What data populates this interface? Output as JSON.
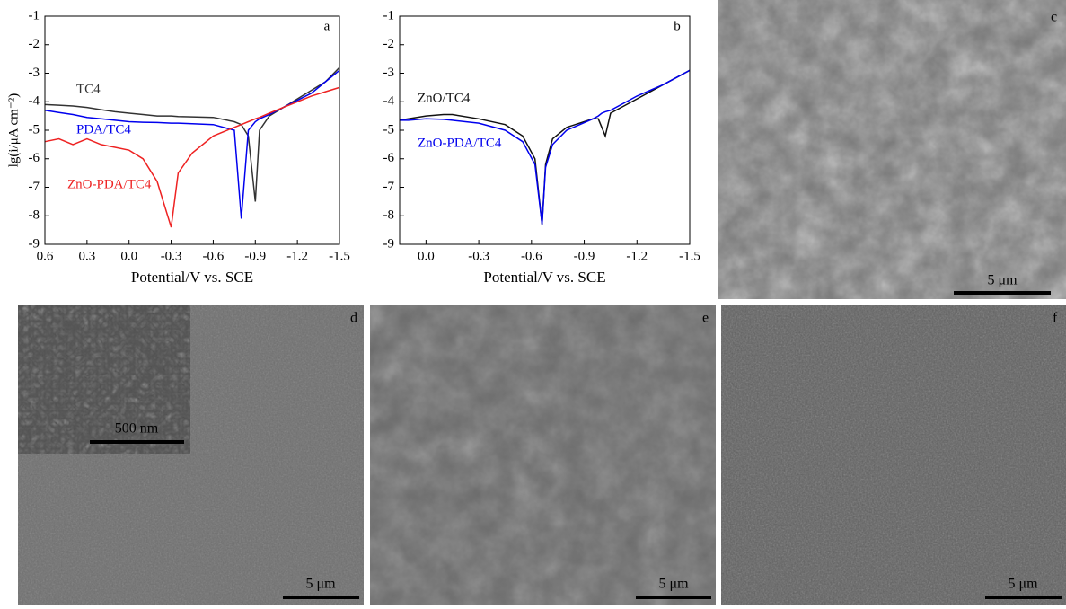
{
  "chart_data": [
    {
      "type": "line",
      "panel_label": "a",
      "x_label": "Potential/V vs. SCE",
      "y_label": "lg(i/μA cm⁻²)",
      "x": [
        0.6,
        0.5,
        0.4,
        0.3,
        0.2,
        0.1,
        0.0,
        -0.1,
        -0.2,
        -0.3,
        -0.35,
        -0.45,
        -0.6,
        -0.75,
        -0.8,
        -0.85,
        -0.9,
        -0.93,
        -1.0,
        -1.1,
        -1.2,
        -1.3,
        -1.4,
        -1.5
      ],
      "series": [
        {
          "name": "TC4",
          "color": "#333333",
          "values": [
            -4.1,
            -4.12,
            -4.15,
            -4.2,
            -4.28,
            -4.35,
            -4.4,
            -4.45,
            -4.5,
            -4.5,
            -4.52,
            -4.53,
            -4.55,
            -4.7,
            -4.8,
            -5.2,
            -7.5,
            -5.0,
            -4.5,
            -4.2,
            -3.9,
            -3.6,
            -3.3,
            -2.8
          ]
        },
        {
          "name": "PDA/TC4",
          "color": "#0000ee",
          "values": [
            -4.3,
            -4.38,
            -4.45,
            -4.55,
            -4.6,
            -4.65,
            -4.7,
            -4.72,
            -4.73,
            -4.75,
            -4.75,
            -4.77,
            -4.8,
            -5.0,
            -8.1,
            -5.0,
            -4.7,
            -4.6,
            -4.45,
            -4.2,
            -3.95,
            -3.7,
            -3.3,
            -2.9
          ]
        },
        {
          "name": "ZnO-PDA/TC4",
          "color": "#ee2222",
          "values": [
            -5.4,
            -5.3,
            -5.5,
            -5.3,
            -5.5,
            -5.6,
            -5.7,
            -6.0,
            -6.8,
            -8.4,
            -6.5,
            -5.8,
            -5.2,
            -4.9,
            -4.8,
            -4.7,
            -4.6,
            -4.55,
            -4.4,
            -4.2,
            -4.0,
            -3.8,
            -3.65,
            -3.5
          ]
        }
      ],
      "xlim": [
        0.6,
        -1.5
      ],
      "xticks": [
        0.6,
        0.3,
        {
          "value": 0,
          "label": "0.0"
        },
        -0.3,
        -0.6,
        -0.9,
        -1.2,
        -1.5
      ],
      "ylim": [
        -9,
        -1
      ],
      "yticks": [
        -9,
        -8,
        -7,
        -6,
        -5,
        -4,
        -3,
        -2,
        -1
      ]
    },
    {
      "type": "line",
      "panel_label": "b",
      "x_label": "Potential/V vs. SCE",
      "x": [
        0.15,
        0.1,
        0.0,
        -0.1,
        -0.15,
        -0.3,
        -0.45,
        -0.55,
        -0.62,
        -0.66,
        -0.68,
        -0.72,
        -0.8,
        -0.95,
        -0.98,
        -1.0,
        -1.02,
        -1.05,
        -1.2,
        -1.35,
        -1.5
      ],
      "series": [
        {
          "name": "ZnO/TC4",
          "color": "#111111",
          "values": [
            -4.65,
            -4.6,
            -4.5,
            -4.45,
            -4.45,
            -4.6,
            -4.8,
            -5.2,
            -6.0,
            -8.3,
            -6.2,
            -5.3,
            -4.9,
            -4.6,
            -4.6,
            -4.9,
            -5.2,
            -4.4,
            -3.9,
            -3.4,
            -2.9
          ]
        },
        {
          "name": "ZnO-PDA/TC4",
          "color": "#0000ee",
          "values": [
            -4.65,
            -4.65,
            -4.6,
            -4.62,
            -4.65,
            -4.75,
            -5.0,
            -5.4,
            -6.2,
            -8.3,
            -6.3,
            -5.5,
            -5.0,
            -4.6,
            -4.5,
            -4.4,
            -4.35,
            -4.3,
            -3.8,
            -3.4,
            -2.9
          ]
        }
      ],
      "xlim": [
        0.15,
        -1.5
      ],
      "xticks": [
        {
          "value": 0,
          "label": "0.0"
        },
        -0.3,
        -0.6,
        -0.9,
        -1.2,
        -1.5
      ],
      "ylim": [
        -9,
        -1
      ],
      "yticks": [
        -9,
        -8,
        -7,
        -6,
        -5,
        -4,
        -3,
        -2,
        -1
      ]
    }
  ],
  "images": [
    {
      "label": "c",
      "scale_bar": "5 μm"
    },
    {
      "label": "d",
      "scale_bar": "5 μm",
      "inset_scale_bar": "500 nm"
    },
    {
      "label": "e",
      "scale_bar": "5 μm"
    },
    {
      "label": "f",
      "scale_bar": "5 μm"
    }
  ]
}
